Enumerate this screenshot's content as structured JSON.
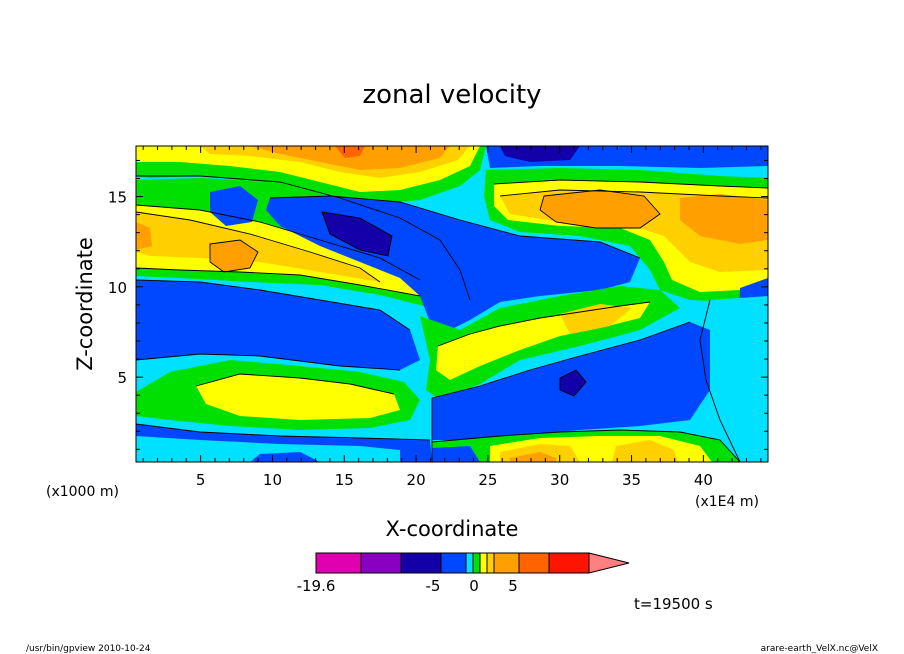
{
  "chart_data": {
    "type": "heatmap",
    "title": "zonal velocity",
    "xlabel": "X-coordinate",
    "ylabel": "Z-coordinate",
    "x_units": "(x1E4 m)",
    "y_units": "(x1000 m)",
    "xlim": [
      0.5,
      44.5
    ],
    "ylim": [
      0.3,
      17.8
    ],
    "x_ticks": [
      "5",
      "10",
      "15",
      "20",
      "25",
      "30",
      "35",
      "40"
    ],
    "y_ticks": [
      "5",
      "10",
      "15"
    ],
    "colorbar": {
      "tick_labels": [
        "-19.6",
        "-5",
        "0",
        "5"
      ],
      "colors": [
        "#e000b0",
        "#8a00c0",
        "#1400a8",
        "#0048ff",
        "#00e0ff",
        "#00e000",
        "#ffff00",
        "#ffd000",
        "#ffa000",
        "#ff6400",
        "#ff1400",
        "#ff8080"
      ]
    },
    "time_label": "t=19500 s"
  },
  "footer": {
    "left": "/usr/bin/gpview  2010-10-24",
    "right": "arare-earth_VelX.nc@VelX"
  }
}
